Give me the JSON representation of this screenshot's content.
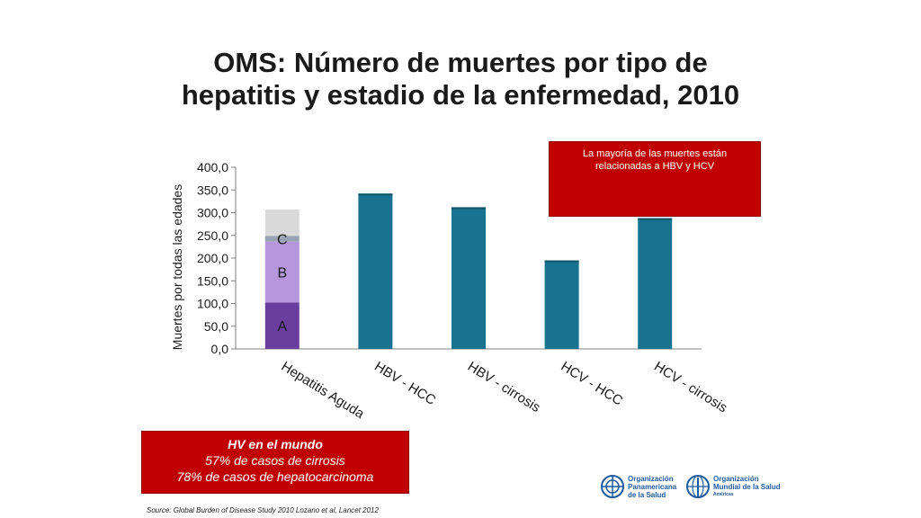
{
  "title": {
    "line1": "OMS: Número de muertes por  tipo de",
    "line2": "hepatitis y estadio de la enfermedad, 2010"
  },
  "chart_data": {
    "type": "bar",
    "ylabel": "Muertes  por todas las edades",
    "ylim": [
      0,
      400
    ],
    "yticks": [
      "0,0",
      "50,0",
      "100,0",
      "150,0",
      "200,0",
      "250,0",
      "300,0",
      "350,0",
      "400,0"
    ],
    "categories": [
      "Hepatitis Aguda",
      "HBV - HCC",
      "HBV - cirrosis",
      "HCV - HCC",
      "HCV - cirrosis"
    ],
    "stacked_bar": {
      "category": "Hepatitis Aguda",
      "segments": [
        {
          "label": "A",
          "value": 102,
          "color": "#6a3e9e"
        },
        {
          "label": "B",
          "value": 134,
          "color": "#b696dc"
        },
        {
          "label": "C",
          "value": 13,
          "color": "#9aa3b4"
        },
        {
          "label": "",
          "value": 58,
          "color": "#d9d9d9"
        }
      ]
    },
    "bars": [
      {
        "category": "HBV - HCC",
        "value": 342
      },
      {
        "category": "HBV - cirrosis",
        "value": 312
      },
      {
        "category": "HCV - HCC",
        "value": 195
      },
      {
        "category": "HCV - cirrosis",
        "value": 288
      }
    ],
    "bar_color": "#17738f",
    "grid": false
  },
  "callout_top": {
    "line1": "La mayoría de las muertes están",
    "line2": "relacionadas a HBV y HCV"
  },
  "callout_bottom": {
    "heading": "HV en el mundo",
    "line1": "57% de casos de cirrosis",
    "line2": "78%  de casos de hepatocarcinoma"
  },
  "source": "Source: Global Burden of Disease Study 2010 Lozano et al, Lancet 2012",
  "logos": {
    "ops": {
      "line1": "Organización",
      "line2": "Panamericana",
      "line3": "de la Salud"
    },
    "oms": {
      "line1": "Organización",
      "line2": "Mundial de la Salud",
      "sub": "Américas"
    }
  },
  "colors": {
    "accent_red": "#c00000",
    "logo_blue": "#1e5aa0"
  }
}
